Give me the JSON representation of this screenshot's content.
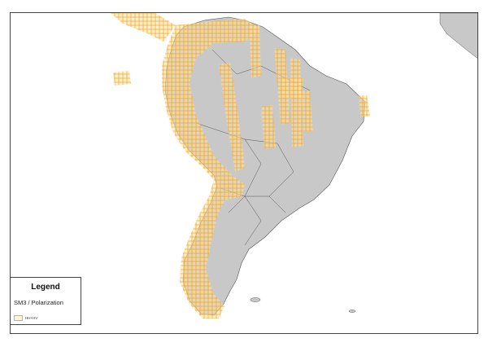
{
  "legend": {
    "title": "Legend",
    "subtitle": "SM3 / Polarization",
    "items": [
      {
        "label": "HH+HV",
        "color": "#f5a623"
      }
    ]
  },
  "colors": {
    "land": "#c8c8c8",
    "coverage": "#f5a623",
    "border": "#555555"
  }
}
